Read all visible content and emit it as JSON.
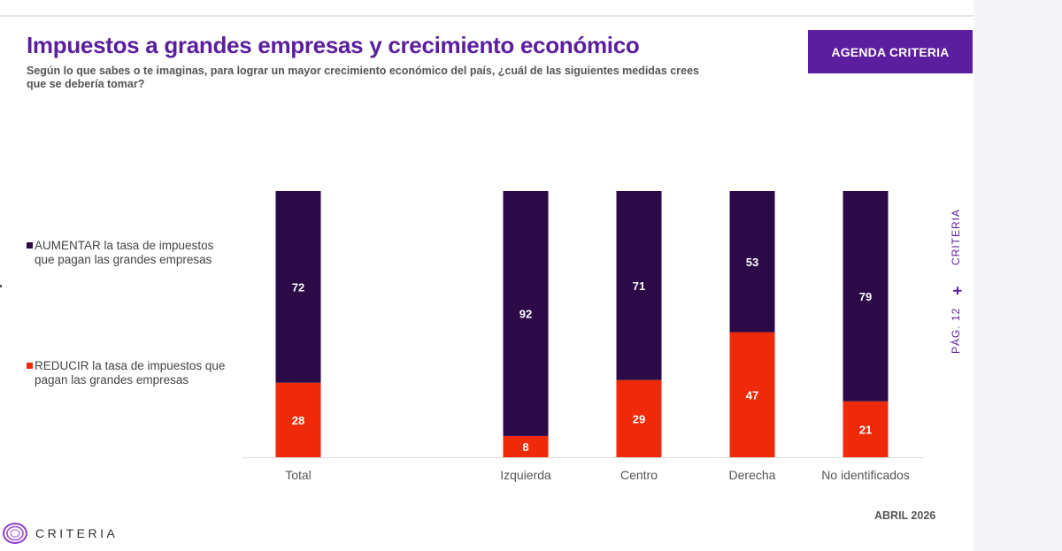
{
  "header": {
    "title": "Impuestos a grandes empresas y crecimiento económico",
    "subtitle": "Según lo que sabes o te imaginas, para lograr un mayor crecimiento económico del país, ¿cuál de las siguientes medidas crees que se debería tomar?",
    "badge": "AGENDA CRITERIA"
  },
  "legend": [
    {
      "label": "AUMENTAR la tasa de impuestos que pagan las grandes empresas",
      "color": "#2b0a47"
    },
    {
      "label": "REDUCIR la tasa de impuestos que pagan las grandes empresas",
      "color": "#ee2a0a"
    }
  ],
  "side": {
    "page": "PÁG. 12",
    "separator": "+",
    "brand": "CRITERIA"
  },
  "footer": {
    "brand": "CRITERIA",
    "date": "ABRIL 2026"
  },
  "colors": {
    "accent": "#5b1e9e",
    "aumentar": "#2b0a47",
    "reducir": "#ee2a0a"
  },
  "chart_data": {
    "type": "bar",
    "stacked": true,
    "categories": [
      "Total",
      "Izquierda",
      "Centro",
      "Derecha",
      "No identificados"
    ],
    "series": [
      {
        "name": "REDUCIR la tasa de impuestos que pagan las grandes empresas",
        "values": [
          28,
          8,
          29,
          47,
          21
        ]
      },
      {
        "name": "AUMENTAR la tasa de impuestos que pagan las grandes empresas",
        "values": [
          72,
          92,
          71,
          53,
          79
        ]
      }
    ],
    "ylim": [
      0,
      100
    ],
    "grid": false,
    "legend_position": "left"
  }
}
